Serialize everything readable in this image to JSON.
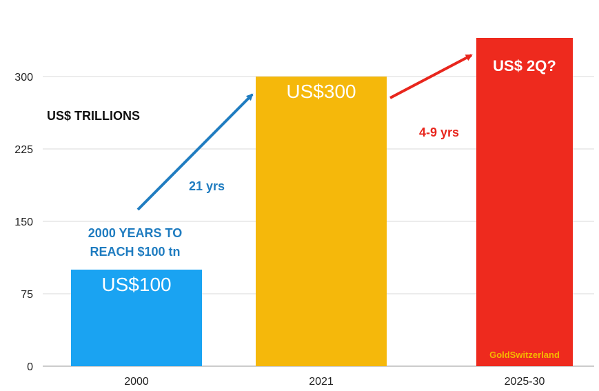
{
  "chart_data": {
    "type": "bar",
    "categories": [
      "2000",
      "2021",
      "2025-30"
    ],
    "values": [
      100,
      300,
      340
    ],
    "colors": [
      "#1aa3f2",
      "#f5b80b",
      "#ee2a1e"
    ],
    "bar_labels": [
      "US$100",
      "US$300",
      "US$ 2Q?"
    ],
    "ylabel": "US$ TRILLIONS",
    "yticks": [
      0,
      75,
      150,
      225,
      300
    ],
    "ylim": [
      0,
      375
    ],
    "grid": true,
    "annotations": {
      "note_line1": "2000 YEARS TO",
      "note_line2": "REACH $100 tn",
      "interval_1": "21 yrs",
      "interval_2": "4-9 yrs"
    },
    "watermark": "GoldSwitzerland"
  }
}
